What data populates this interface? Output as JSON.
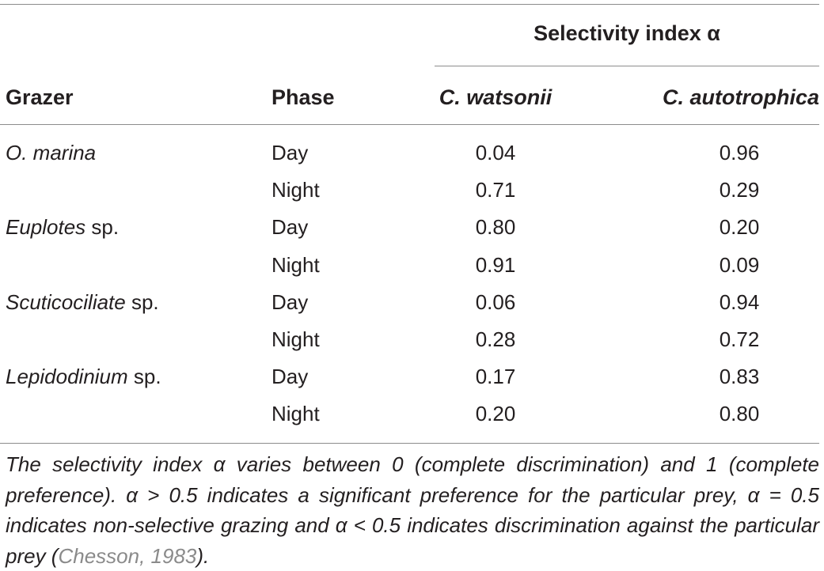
{
  "table": {
    "span_header": "Selectivity index α",
    "headers": {
      "grazer": "Grazer",
      "phase": "Phase",
      "cw": "C. watsonii",
      "ca": "C. autotrophica"
    },
    "rows": [
      {
        "genus": "O. marina",
        "suffix": "",
        "phase": "Day",
        "cw": "0.04",
        "ca": "0.96"
      },
      {
        "genus": "",
        "suffix": "",
        "phase": "Night",
        "cw": "0.71",
        "ca": "0.29"
      },
      {
        "genus": "Euplotes",
        "suffix": " sp.",
        "phase": "Day",
        "cw": "0.80",
        "ca": "0.20"
      },
      {
        "genus": "",
        "suffix": "",
        "phase": "Night",
        "cw": "0.91",
        "ca": "0.09"
      },
      {
        "genus": "Scuticociliate",
        "suffix": " sp.",
        "phase": "Day",
        "cw": "0.06",
        "ca": "0.94"
      },
      {
        "genus": "",
        "suffix": "",
        "phase": "Night",
        "cw": "0.28",
        "ca": "0.72"
      },
      {
        "genus": "Lepidodinium",
        "suffix": " sp.",
        "phase": "Day",
        "cw": "0.17",
        "ca": "0.83"
      },
      {
        "genus": "",
        "suffix": "",
        "phase": "Night",
        "cw": "0.20",
        "ca": "0.80"
      }
    ],
    "footnote": {
      "text": "The selectivity index α varies between 0 (complete discrimination) and 1 (complete preference). α > 0.5 indicates a significant preference for the particular prey, α = 0.5 indicates non-selective grazing and α < 0.5 indicates discrimination against the particular prey (",
      "citation": "Chesson, 1983",
      "end": ")."
    }
  }
}
